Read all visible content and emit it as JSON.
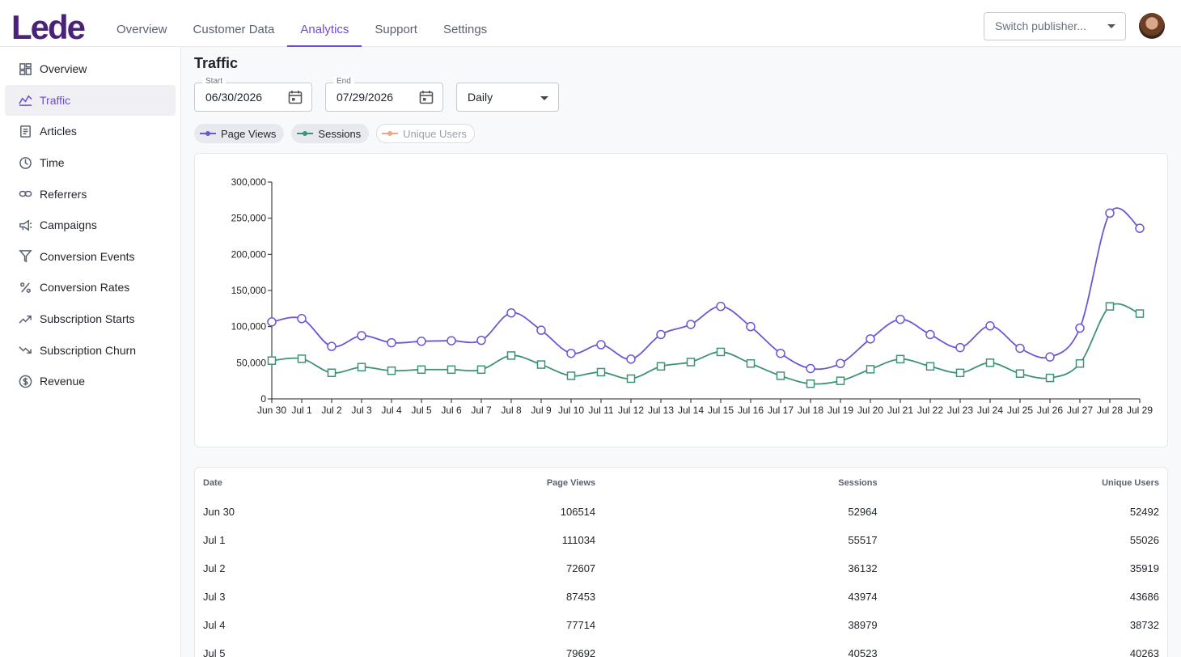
{
  "brand": {
    "logo_text": "Lede",
    "accent": "#6e4bd4"
  },
  "top_nav": {
    "tabs": [
      {
        "label": "Overview",
        "active": false
      },
      {
        "label": "Customer Data",
        "active": false
      },
      {
        "label": "Analytics",
        "active": true
      },
      {
        "label": "Support",
        "active": false
      },
      {
        "label": "Settings",
        "active": false
      }
    ],
    "publisher_placeholder": "Switch publisher..."
  },
  "sidebar": {
    "items": [
      {
        "label": "Overview",
        "icon": "dashboard-icon",
        "active": false
      },
      {
        "label": "Traffic",
        "icon": "trending-line-icon",
        "active": true
      },
      {
        "label": "Articles",
        "icon": "article-icon",
        "active": false
      },
      {
        "label": "Time",
        "icon": "clock-icon",
        "active": false
      },
      {
        "label": "Referrers",
        "icon": "link-icon",
        "active": false
      },
      {
        "label": "Campaigns",
        "icon": "megaphone-icon",
        "active": false
      },
      {
        "label": "Conversion Events",
        "icon": "filter-icon",
        "active": false
      },
      {
        "label": "Conversion Rates",
        "icon": "percent-icon",
        "active": false
      },
      {
        "label": "Subscription Starts",
        "icon": "trending-up-icon",
        "active": false
      },
      {
        "label": "Subscription Churn",
        "icon": "trending-down-icon",
        "active": false
      },
      {
        "label": "Revenue",
        "icon": "dollar-circle-icon",
        "active": false
      }
    ]
  },
  "page": {
    "title": "Traffic",
    "start": {
      "label": "Start",
      "value": "06/30/2026"
    },
    "end": {
      "label": "End",
      "value": "07/29/2026"
    },
    "interval": {
      "value": "Daily"
    }
  },
  "legend": [
    {
      "label": "Page Views",
      "color": "#6e55d4",
      "enabled": true
    },
    {
      "label": "Sessions",
      "color": "#3d9278",
      "enabled": true
    },
    {
      "label": "Unique Users",
      "color": "#f0a58a",
      "enabled": false
    }
  ],
  "chart_data": {
    "type": "line",
    "x": [
      "Jun 30",
      "Jul 1",
      "Jul 2",
      "Jul 3",
      "Jul 4",
      "Jul 5",
      "Jul 6",
      "Jul 7",
      "Jul 8",
      "Jul 9",
      "Jul 10",
      "Jul 11",
      "Jul 12",
      "Jul 13",
      "Jul 14",
      "Jul 15",
      "Jul 16",
      "Jul 17",
      "Jul 18",
      "Jul 19",
      "Jul 20",
      "Jul 21",
      "Jul 22",
      "Jul 23",
      "Jul 24",
      "Jul 25",
      "Jul 26",
      "Jul 27",
      "Jul 28",
      "Jul 29"
    ],
    "series": [
      {
        "name": "Page Views",
        "color": "#6e55d4",
        "marker": "circle",
        "values": [
          106514,
          111034,
          72607,
          87453,
          77714,
          79692,
          80500,
          81000,
          119000,
          95000,
          63000,
          75000,
          55000,
          89000,
          103000,
          128000,
          100000,
          63000,
          42000,
          49000,
          83000,
          110000,
          89000,
          71000,
          101000,
          70000,
          58000,
          98000,
          257000,
          236000
        ]
      },
      {
        "name": "Sessions",
        "color": "#3d9278",
        "marker": "square",
        "values": [
          52964,
          55517,
          36132,
          43974,
          38979,
          40523,
          40500,
          40500,
          60000,
          47500,
          32000,
          37000,
          28000,
          45000,
          51000,
          65000,
          49000,
          32000,
          21000,
          25000,
          41000,
          55000,
          45000,
          36000,
          50000,
          35000,
          29000,
          49000,
          128000,
          118000
        ]
      }
    ],
    "ylim": [
      0,
      300000
    ],
    "yticks": [
      "0",
      "50,000",
      "100,000",
      "150,000",
      "200,000",
      "250,000",
      "300,000"
    ],
    "grid": false,
    "legend": "top-left"
  },
  "table": {
    "headers": [
      "Date",
      "Page Views",
      "Sessions",
      "Unique Users"
    ],
    "rows": [
      [
        "Jun 30",
        "106514",
        "52964",
        "52492"
      ],
      [
        "Jul 1",
        "111034",
        "55517",
        "55026"
      ],
      [
        "Jul 2",
        "72607",
        "36132",
        "35919"
      ],
      [
        "Jul 3",
        "87453",
        "43974",
        "43686"
      ],
      [
        "Jul 4",
        "77714",
        "38979",
        "38732"
      ],
      [
        "Jul 5",
        "79692",
        "40523",
        "40263"
      ]
    ]
  }
}
